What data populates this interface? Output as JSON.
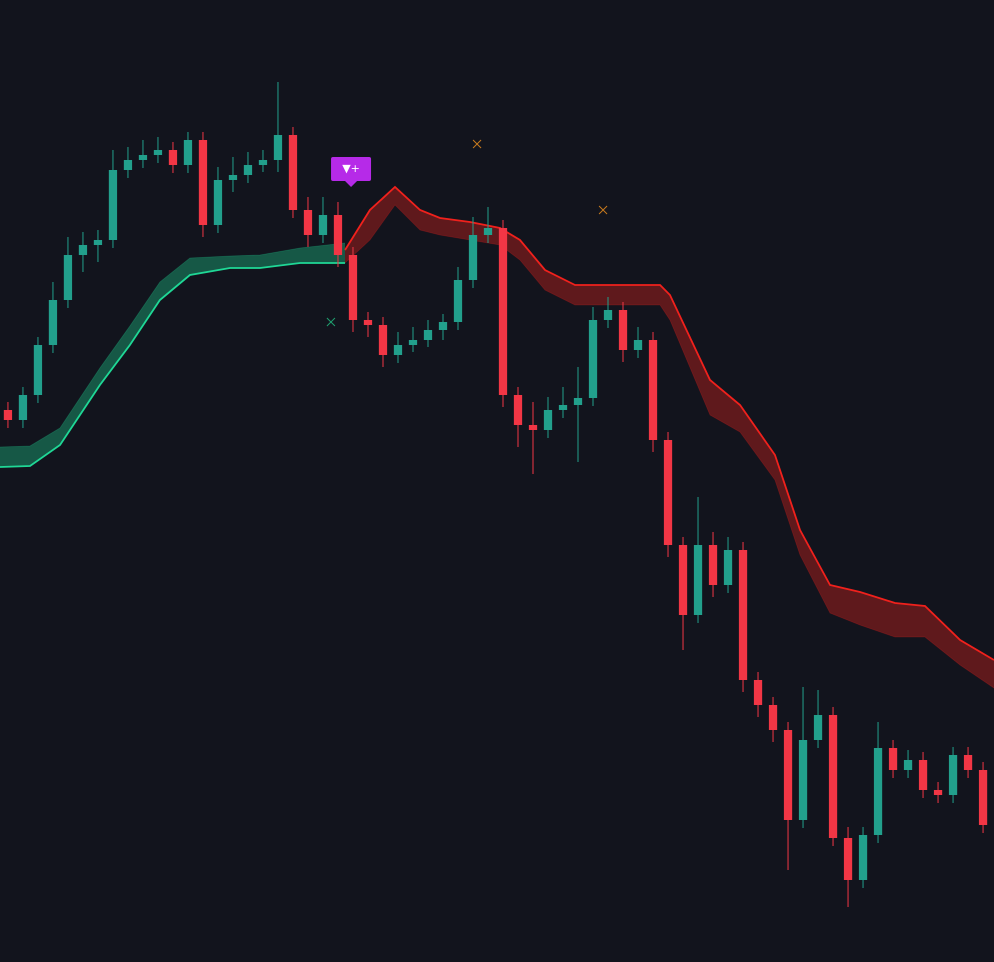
{
  "chart_data": {
    "type": "candlestick",
    "xlim": [
      -0.53,
      65.73
    ],
    "ylim": [
      0,
      962
    ],
    "up_color": "#22a08c",
    "down_color": "#f23645",
    "background": "#12141d",
    "open": [
      552,
      542,
      567,
      617,
      662,
      707,
      717,
      722,
      792,
      802,
      807,
      812,
      797,
      822,
      737,
      782,
      787,
      797,
      802,
      827,
      752,
      727,
      747,
      707,
      642,
      637,
      607,
      617,
      622,
      632,
      640,
      682,
      727,
      734,
      567,
      537,
      532,
      552,
      557,
      564,
      642,
      652,
      612,
      622,
      522,
      417,
      347,
      417,
      377,
      412,
      282,
      257,
      232,
      142,
      222,
      247,
      124,
      82,
      127,
      214,
      192,
      202,
      172,
      167,
      207,
      192
    ],
    "high": [
      560,
      575,
      625,
      680,
      725,
      730,
      732,
      812,
      815,
      822,
      825,
      820,
      830,
      830,
      795,
      805,
      810,
      812,
      880,
      835,
      765,
      765,
      760,
      715,
      650,
      645,
      630,
      635,
      642,
      648,
      695,
      745,
      755,
      742,
      575,
      560,
      565,
      575,
      595,
      655,
      665,
      660,
      635,
      630,
      530,
      425,
      465,
      430,
      425,
      420,
      290,
      265,
      240,
      275,
      272,
      255,
      135,
      135,
      240,
      222,
      212,
      210,
      180,
      215,
      215,
      200
    ],
    "low": [
      534,
      534,
      559,
      609,
      654,
      690,
      700,
      714,
      784,
      794,
      799,
      789,
      789,
      725,
      729,
      770,
      779,
      790,
      790,
      744,
      715,
      719,
      695,
      630,
      625,
      595,
      599,
      610,
      615,
      622,
      632,
      674,
      719,
      555,
      515,
      488,
      524,
      544,
      500,
      556,
      634,
      600,
      604,
      510,
      405,
      312,
      339,
      365,
      369,
      270,
      245,
      220,
      92,
      134,
      214,
      116,
      55,
      74,
      119,
      184,
      184,
      164,
      159,
      159,
      184,
      129
    ],
    "close": [
      542,
      567,
      617,
      662,
      707,
      717,
      722,
      792,
      802,
      807,
      812,
      797,
      822,
      737,
      782,
      787,
      797,
      802,
      827,
      752,
      727,
      747,
      707,
      642,
      637,
      607,
      617,
      622,
      632,
      640,
      682,
      727,
      734,
      567,
      537,
      532,
      552,
      557,
      564,
      642,
      652,
      612,
      622,
      522,
      417,
      347,
      417,
      377,
      412,
      282,
      257,
      232,
      142,
      222,
      247,
      124,
      82,
      127,
      214,
      192,
      202,
      172,
      167,
      207,
      192,
      137
    ],
    "bands": [
      {
        "color": "#1fd896",
        "x": [
          -0.53,
          1.47,
          3.47,
          4.8,
          6.13,
          8.13,
          10.13,
          12.13,
          14.8,
          16.8,
          19.47,
          22.47
        ],
        "upper": [
          515,
          516,
          534,
          564,
          594,
          636,
          680,
          704,
          706,
          707,
          714,
          719
        ],
        "lower": [
          495,
          496,
          517,
          547,
          577,
          617,
          662,
          687,
          694,
          694,
          699,
          699
        ],
        "edge": "lower"
      },
      {
        "color": "#f0211c",
        "x": [
          22.47,
          24.13,
          25.8,
          27.47,
          28.8,
          30.8,
          32.8,
          34.13,
          35.8,
          37.8,
          43.47,
          44.13,
          46.8,
          48.8,
          51.13,
          52.8,
          54.8,
          56.8,
          59.13,
          61.13,
          63.47,
          65.73
        ],
        "upper": [
          712,
          752,
          775,
          752,
          744,
          740,
          734,
          722,
          692,
          677,
          677,
          667,
          582,
          557,
          507,
          432,
          377,
          370,
          359,
          356,
          322,
          302
        ],
        "lower": [
          699,
          722,
          757,
          732,
          727,
          722,
          717,
          702,
          672,
          657,
          657,
          642,
          547,
          530,
          482,
          407,
          349,
          337,
          325,
          325,
          297,
          274
        ],
        "edge": "upper"
      }
    ],
    "signals": [
      {
        "x": 21.53,
        "value": 640,
        "color": "#1fa070"
      },
      {
        "x": 31.27,
        "value": 818,
        "color": "#c77a1e"
      },
      {
        "x": 39.67,
        "value": 752,
        "color": "#c77a1e"
      }
    ],
    "annotation": {
      "text": "▼+",
      "x": 22.87,
      "value": 772,
      "color": "#b62ae8"
    }
  }
}
